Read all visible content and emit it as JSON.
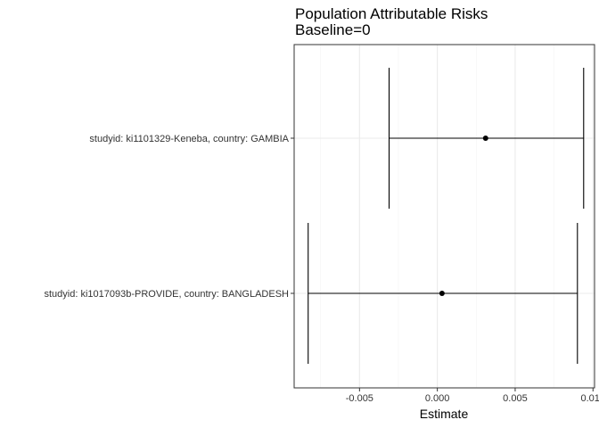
{
  "chart_data": {
    "type": "forest",
    "title": "Population Attributable Risks",
    "subtitle": "Baseline=0",
    "xlabel": "Estimate",
    "ylabel": "",
    "xlim": [
      -0.0092,
      0.0101
    ],
    "xticks": [
      -0.005,
      0.0,
      0.005,
      0.01
    ],
    "xtick_labels": [
      "-0.005",
      "0.000",
      "0.005",
      "0.010"
    ],
    "grid": true,
    "theme": "bw",
    "series": [
      {
        "label": "studyid: ki1101329-Keneba, country: GAMBIA",
        "estimate": 0.0031,
        "lower": -0.0031,
        "upper": 0.0094
      },
      {
        "label": "studyid: ki1017093b-PROVIDE, country: BANGLADESH",
        "estimate": 0.0003,
        "lower": -0.0083,
        "upper": 0.009
      }
    ]
  }
}
